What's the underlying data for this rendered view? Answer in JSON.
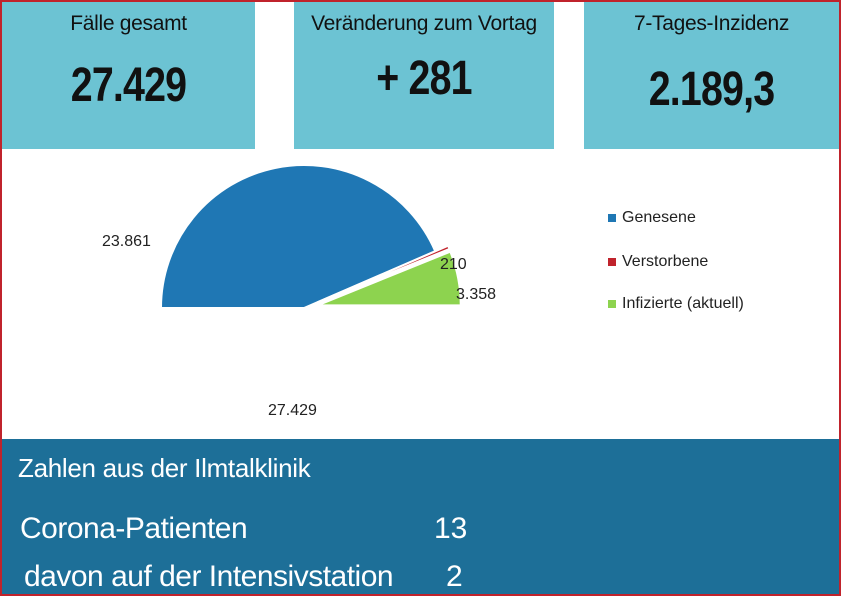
{
  "stats": [
    {
      "label": "Fälle gesamt",
      "value": "27.429"
    },
    {
      "label": "Veränderung zum Vortag",
      "value": "+ 281"
    },
    {
      "label": "7-Tages-Inzidenz",
      "value": "2.189,3"
    }
  ],
  "chart_data": {
    "type": "pie",
    "title": "",
    "total_label": "27.429",
    "slices": [
      {
        "name": "Genesene",
        "value": 23861,
        "label": "23.861",
        "color": "#1f77b4"
      },
      {
        "name": "Verstorbene",
        "value": 210,
        "label": "210",
        "color": "#c0232c"
      },
      {
        "name": "Infizierte (aktuell)",
        "value": 3358,
        "label": "3.358",
        "color": "#8dd34f"
      }
    ],
    "legend_position": "right"
  },
  "clinic": {
    "title": "Zahlen aus der Ilmtalklinik",
    "rows": [
      {
        "label": "Corona-Patienten",
        "value": "13"
      },
      {
        "label": "davon auf der Intensivstation",
        "value": "2"
      }
    ]
  }
}
